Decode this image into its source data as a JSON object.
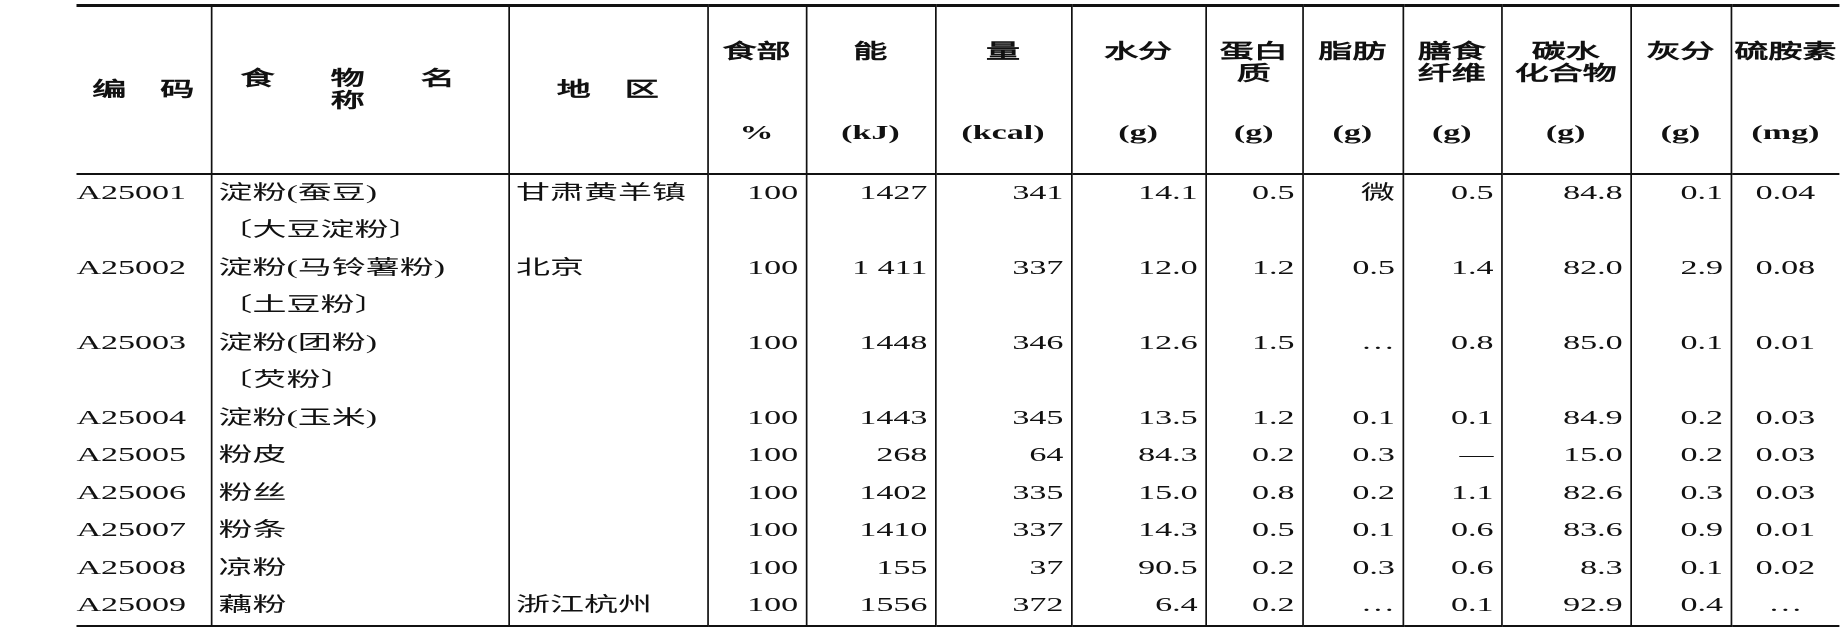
{
  "header": [
    {
      "top": [
        "编　码"
      ],
      "unit": ""
    },
    {
      "top": [
        "食 物 名 称"
      ],
      "unit": ""
    },
    {
      "top": [
        "地　区"
      ],
      "unit": ""
    },
    {
      "top": [
        "食部"
      ],
      "unit": "%"
    },
    {
      "top": [
        "能"
      ],
      "unit": "(kJ)"
    },
    {
      "top": [
        "量"
      ],
      "unit": "(kcal)"
    },
    {
      "top": [
        "水分"
      ],
      "unit": "(g)"
    },
    {
      "top": [
        "蛋白",
        "质"
      ],
      "unit": "(g)"
    },
    {
      "top": [
        "脂肪"
      ],
      "unit": "(g)"
    },
    {
      "top": [
        "膳食",
        "纤维"
      ],
      "unit": "(g)"
    },
    {
      "top": [
        "碳水",
        "化合物"
      ],
      "unit": "(g)"
    },
    {
      "top": [
        "灰分"
      ],
      "unit": "(g)"
    },
    {
      "top": [
        "硫胺素"
      ],
      "unit": "(mg)"
    }
  ],
  "rows": [
    {
      "code": "A25001",
      "name": "淀粉(蚕豆)",
      "alias": "〔大豆淀粉〕",
      "region": "甘肃黄羊镇",
      "edible": "100",
      "kj": "1427",
      "kcal": "341",
      "water": "14.1",
      "protein": "0.5",
      "fat": "微",
      "fiber": "0.5",
      "carb": "84.8",
      "ash": "0.1",
      "thiamin": "0.04"
    },
    {
      "code": "A25002",
      "name": "淀粉(马铃薯粉)",
      "alias": "〔土豆粉〕",
      "region": "北京",
      "edible": "100",
      "kj": "1 411",
      "kcal": "337",
      "water": "12.0",
      "protein": "1.2",
      "fat": "0.5",
      "fiber": "1.4",
      "carb": "82.0",
      "ash": "2.9",
      "thiamin": "0.08"
    },
    {
      "code": "A25003",
      "name": "淀粉(团粉)",
      "alias": "〔芡粉〕",
      "region": "",
      "edible": "100",
      "kj": "1448",
      "kcal": "346",
      "water": "12.6",
      "protein": "1.5",
      "fat": "…",
      "fiber": "0.8",
      "carb": "85.0",
      "ash": "0.1",
      "thiamin": "0.01"
    },
    {
      "code": "A25004",
      "name": "淀粉(玉米)",
      "alias": "",
      "region": "",
      "edible": "100",
      "kj": "1443",
      "kcal": "345",
      "water": "13.5",
      "protein": "1.2",
      "fat": "0.1",
      "fiber": "0.1",
      "carb": "84.9",
      "ash": "0.2",
      "thiamin": "0.03"
    },
    {
      "code": "A25005",
      "name": "粉皮",
      "alias": "",
      "region": "",
      "edible": "100",
      "kj": "268",
      "kcal": "64",
      "water": "84.3",
      "protein": "0.2",
      "fat": "0.3",
      "fiber": "—",
      "carb": "15.0",
      "ash": "0.2",
      "thiamin": "0.03"
    },
    {
      "code": "A25006",
      "name": "粉丝",
      "alias": "",
      "region": "",
      "edible": "100",
      "kj": "1402",
      "kcal": "335",
      "water": "15.0",
      "protein": "0.8",
      "fat": "0.2",
      "fiber": "1.1",
      "carb": "82.6",
      "ash": "0.3",
      "thiamin": "0.03"
    },
    {
      "code": "A25007",
      "name": "粉条",
      "alias": "",
      "region": "",
      "edible": "100",
      "kj": "1410",
      "kcal": "337",
      "water": "14.3",
      "protein": "0.5",
      "fat": "0.1",
      "fiber": "0.6",
      "carb": "83.6",
      "ash": "0.9",
      "thiamin": "0.01"
    },
    {
      "code": "A25008",
      "name": "凉粉",
      "alias": "",
      "region": "",
      "edible": "100",
      "kj": "155",
      "kcal": "37",
      "water": "90.5",
      "protein": "0.2",
      "fat": "0.3",
      "fiber": "0.6",
      "carb": "8.3",
      "ash": "0.1",
      "thiamin": "0.02"
    },
    {
      "code": "A25009",
      "name": "藕粉",
      "alias": "",
      "region": "浙江杭州",
      "edible": "100",
      "kj": "1556",
      "kcal": "372",
      "water": "6.4",
      "protein": "0.2",
      "fat": "…",
      "fiber": "0.1",
      "carb": "92.9",
      "ash": "0.4",
      "thiamin": "…"
    }
  ]
}
